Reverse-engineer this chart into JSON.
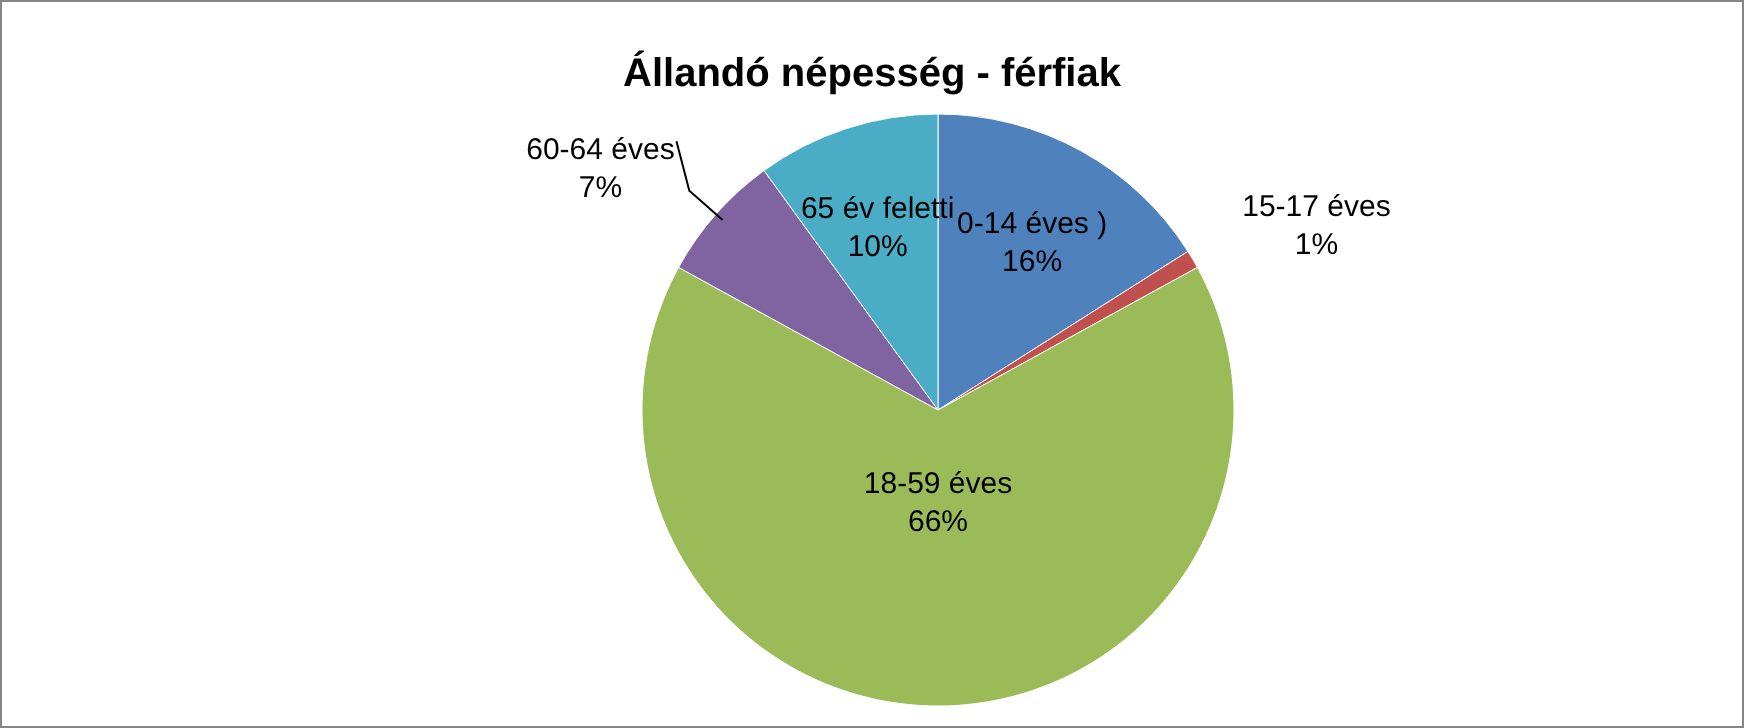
{
  "chart_data": {
    "type": "pie",
    "title": "Állandó népesség - férfiak",
    "categories": [
      "0-14 éves )",
      "15-17 éves",
      "18-59 éves",
      "60-64 éves",
      "65 év feletti"
    ],
    "values": [
      16,
      1,
      66,
      7,
      10
    ],
    "value_labels": [
      "16%",
      "1%",
      "66%",
      "7%",
      "10%"
    ],
    "colors": [
      "#4f81bd",
      "#c0504d",
      "#9bbb59",
      "#8064a2",
      "#4bacc6"
    ]
  }
}
